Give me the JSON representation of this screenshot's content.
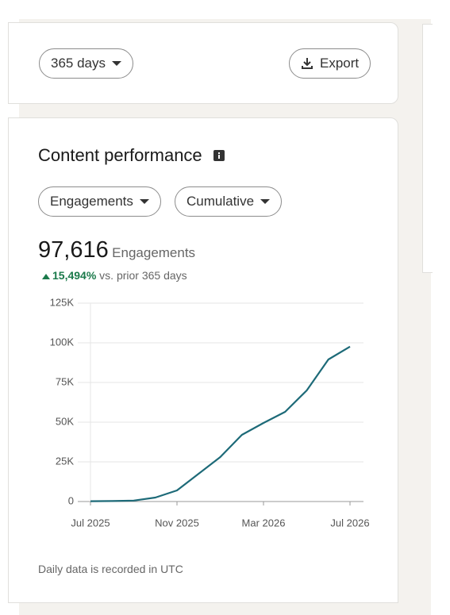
{
  "top_bar": {
    "period": "365 days",
    "export": "Export"
  },
  "card": {
    "title": "Content performance",
    "metric_dropdown": "Engagements",
    "mode_dropdown": "Cumulative",
    "total": "97,616",
    "total_label": "Engagements",
    "change": "15,494%",
    "change_label": "vs. prior 365 days",
    "footnote": "Daily data is recorded in UTC"
  },
  "chart_data": {
    "type": "line",
    "categories": [
      "Jul 2025",
      null,
      null,
      null,
      "Nov 2025",
      null,
      null,
      null,
      "Mar 2026",
      null,
      null,
      null,
      "Jul 2026"
    ],
    "series": [
      {
        "name": "Engagements",
        "color": "#1d6a78",
        "values": [
          200,
          300,
          600,
          2500,
          7000,
          17500,
          28000,
          42000,
          49500,
          56500,
          70000,
          89500,
          97600
        ]
      }
    ],
    "ylim": [
      0,
      125000
    ],
    "yticks": [
      {
        "value": 0,
        "label": "0"
      },
      {
        "value": 25000,
        "label": "25K"
      },
      {
        "value": 50000,
        "label": "50K"
      },
      {
        "value": 75000,
        "label": "75K"
      },
      {
        "value": 100000,
        "label": "100K"
      },
      {
        "value": 125000,
        "label": "125K"
      }
    ],
    "grid": true
  }
}
